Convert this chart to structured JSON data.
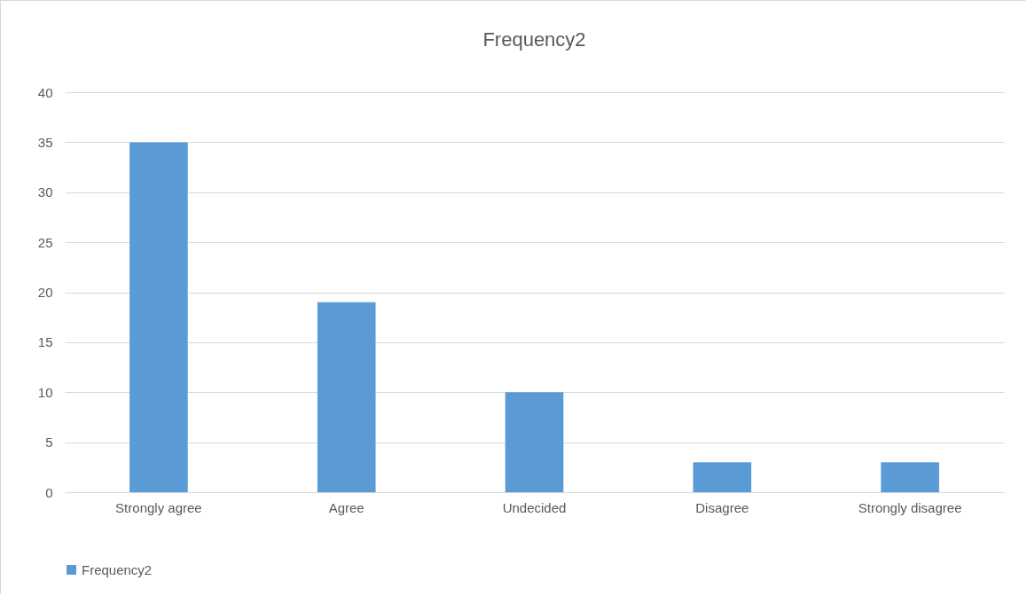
{
  "chart_data": {
    "type": "bar",
    "title": "Frequency2",
    "categories": [
      "Strongly agree",
      "Agree",
      "Undecided",
      "Disagree",
      "Strongly disagree"
    ],
    "series": [
      {
        "name": "Frequency2",
        "color": "#5b9bd5",
        "values": [
          35,
          19,
          10,
          3,
          3
        ]
      }
    ],
    "ylim": [
      0,
      40
    ],
    "yticks": [
      0,
      5,
      10,
      15,
      20,
      25,
      30,
      35,
      40
    ],
    "grid": true,
    "legend": "bottom"
  }
}
